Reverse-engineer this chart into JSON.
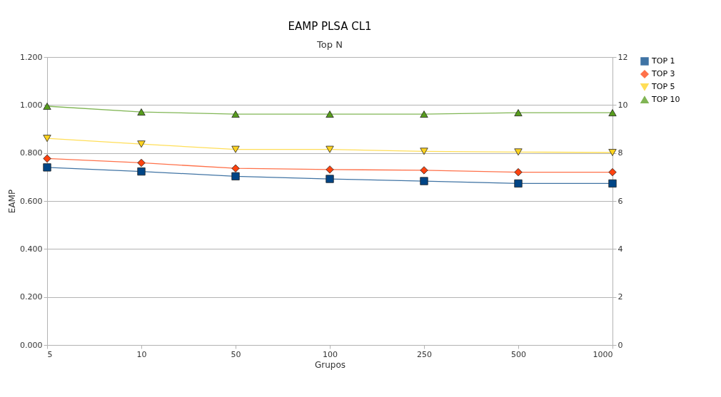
{
  "chart_data": {
    "type": "line",
    "title": "EAMP PLSA CL1",
    "subtitle": "Top N",
    "xlabel": "Grupos",
    "ylabel": "EAMP",
    "categories": [
      "5",
      "10",
      "50",
      "100",
      "250",
      "500",
      "1000"
    ],
    "series": [
      {
        "name": "TOP 1",
        "color": "#004586",
        "marker": "square",
        "values": [
          0.74,
          0.723,
          0.703,
          0.692,
          0.683,
          0.673,
          0.673
        ]
      },
      {
        "name": "TOP 3",
        "color": "#ff420e",
        "marker": "diamond",
        "values": [
          0.777,
          0.759,
          0.736,
          0.731,
          0.728,
          0.72,
          0.72
        ]
      },
      {
        "name": "TOP 5",
        "color": "#ffd320",
        "marker": "triangle-down",
        "values": [
          0.861,
          0.837,
          0.815,
          0.815,
          0.807,
          0.804,
          0.802
        ]
      },
      {
        "name": "TOP 10",
        "color": "#579d1c",
        "marker": "triangle",
        "values": [
          0.995,
          0.971,
          0.962,
          0.962,
          0.962,
          0.968,
          0.968
        ]
      }
    ],
    "ylim": [
      0,
      1.2
    ],
    "yticks": [
      {
        "value": 0,
        "label": "0.000"
      },
      {
        "value": 0.2,
        "label": "0.200"
      },
      {
        "value": 0.4,
        "label": "0.400"
      },
      {
        "value": 0.6,
        "label": "0.600"
      },
      {
        "value": 0.8,
        "label": "0.800"
      },
      {
        "value": 1.0,
        "label": "1.000"
      },
      {
        "value": 1.2,
        "label": "1.200"
      }
    ],
    "y2lim": [
      0,
      12
    ],
    "y2ticks": [
      0,
      2,
      4,
      6,
      8,
      10,
      12
    ],
    "grid": "y",
    "legend": "right",
    "line_style": "solid"
  }
}
